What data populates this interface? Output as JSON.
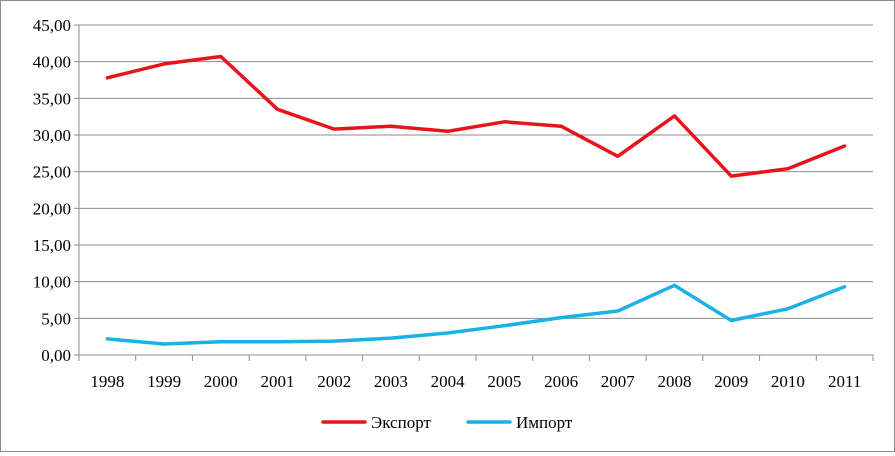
{
  "chart_data": {
    "type": "line",
    "title": "",
    "xlabel": "",
    "ylabel": "",
    "categories": [
      "1998",
      "1999",
      "2000",
      "2001",
      "2002",
      "2003",
      "2004",
      "2005",
      "2006",
      "2007",
      "2008",
      "2009",
      "2010",
      "2011"
    ],
    "ylim": [
      0,
      45
    ],
    "y_ticks": [
      "0,00",
      "5,00",
      "10,00",
      "15,00",
      "20,00",
      "25,00",
      "30,00",
      "35,00",
      "40,00",
      "45,00"
    ],
    "grid": true,
    "legend_position": "bottom",
    "series": [
      {
        "name": "Экспорт",
        "color": "#e8141b",
        "values": [
          37.8,
          39.7,
          40.7,
          33.5,
          30.8,
          31.2,
          30.5,
          31.8,
          31.2,
          27.1,
          32.6,
          24.4,
          25.4,
          28.5
        ]
      },
      {
        "name": "Импорт",
        "color": "#19b1e6",
        "values": [
          2.2,
          1.5,
          1.8,
          1.8,
          1.9,
          2.3,
          3.0,
          4.0,
          5.1,
          6.0,
          9.5,
          4.7,
          6.3,
          9.3
        ]
      }
    ]
  }
}
